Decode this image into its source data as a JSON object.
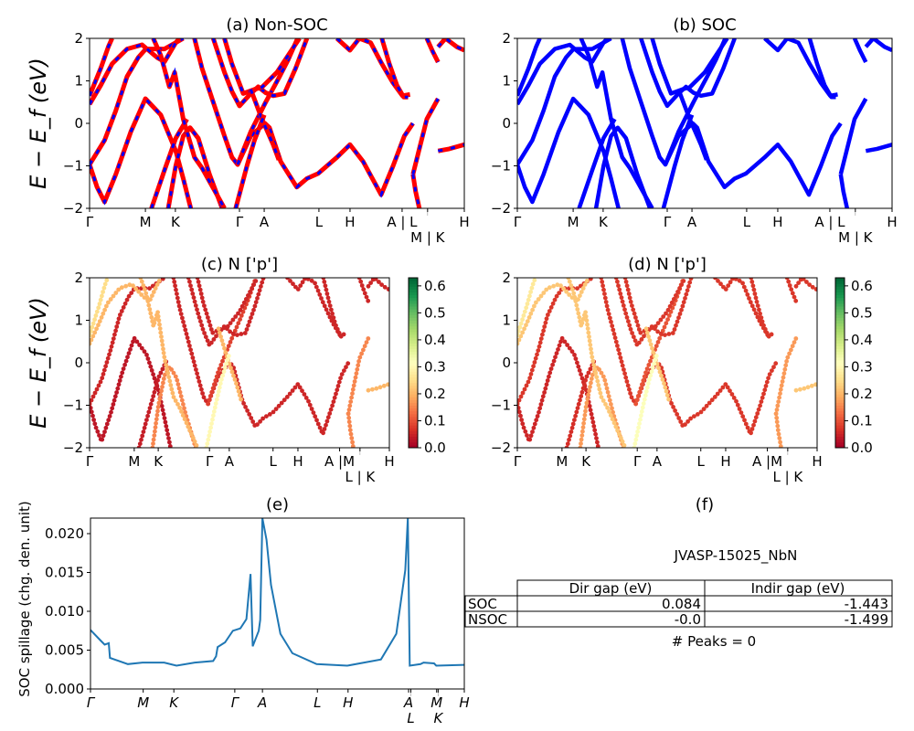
{
  "chart_data": [
    {
      "id": "a",
      "type": "line",
      "title": "(a) Non-SOC",
      "ylabel": "E − E_f (eV)",
      "ylim": [
        -2,
        2
      ],
      "yticks": [
        -2,
        -1,
        0,
        1,
        2
      ],
      "xticks": [
        "Γ",
        "M",
        "K",
        "Γ",
        "A",
        "L",
        "H",
        "A | L",
        "M | K",
        "H"
      ],
      "xtick_pos": [
        0,
        0.149,
        0.229,
        0.4,
        0.466,
        0.612,
        0.695,
        0.834,
        0.902,
        1.0
      ],
      "style": "red-blue-dashed"
    },
    {
      "id": "b",
      "type": "line",
      "title": "(b) SOC",
      "ylim": [
        -2,
        2
      ],
      "yticks": [
        -2,
        -1,
        0,
        1,
        2
      ],
      "xticks": [
        "Γ",
        "M",
        "K",
        "Γ",
        "A",
        "L",
        "H",
        "A | L",
        "M | K",
        "H"
      ],
      "xtick_pos": [
        0,
        0.149,
        0.229,
        0.4,
        0.466,
        0.612,
        0.695,
        0.834,
        0.902,
        1.0
      ],
      "style": "blue",
      "color": "#0000ff"
    },
    {
      "id": "c",
      "type": "scatter",
      "title": "(c)  N ['p']",
      "ylabel": "E − E_f (eV)",
      "ylim": [
        -2,
        2
      ],
      "yticks": [
        -2,
        -1,
        0,
        1,
        2
      ],
      "xticks": [
        "Γ",
        "M",
        "K",
        "Γ",
        "A",
        "L",
        "H",
        "A |M",
        "L | K",
        "H"
      ],
      "xtick_pos": [
        0,
        0.149,
        0.229,
        0.4,
        0.466,
        0.612,
        0.695,
        0.834,
        0.902,
        1.0
      ],
      "colorbar": {
        "colormap": "RdYlGn",
        "range": [
          0,
          0.63
        ],
        "ticks": [
          "0.0",
          "0.1",
          "0.2",
          "0.3",
          "0.4",
          "0.5",
          "0.6"
        ]
      }
    },
    {
      "id": "d",
      "type": "scatter",
      "title": "(d) N ['p']",
      "ylim": [
        -2,
        2
      ],
      "yticks": [
        -2,
        -1,
        0,
        1,
        2
      ],
      "xticks": [
        "Γ",
        "M",
        "K",
        "Γ",
        "A",
        "L",
        "H",
        "A |M",
        "L | K",
        "H"
      ],
      "xtick_pos": [
        0,
        0.149,
        0.229,
        0.4,
        0.466,
        0.612,
        0.695,
        0.834,
        0.902,
        1.0
      ],
      "colorbar": {
        "colormap": "RdYlGn",
        "range": [
          0,
          0.63
        ],
        "ticks": [
          "0.0",
          "0.1",
          "0.2",
          "0.3",
          "0.4",
          "0.5",
          "0.6"
        ]
      }
    },
    {
      "id": "e",
      "type": "line",
      "title": "(e)",
      "ylabel": "SOC spillage (chg. den. unit)",
      "ylim": [
        0,
        0.022
      ],
      "yticks": [
        "0.000",
        "0.005",
        "0.010",
        "0.015",
        "0.020"
      ],
      "xticks": [
        "Γ",
        "M",
        "K",
        "Γ",
        "A",
        "L",
        "H",
        "A",
        "L",
        "M",
        "K",
        "H"
      ],
      "xtick_pos": [
        0,
        0.141,
        0.223,
        0.386,
        0.46,
        0.607,
        0.689,
        0.851,
        0.857,
        0.926,
        0.93,
        1.0
      ],
      "color": "#1f77b4",
      "x": [
        0,
        0.026,
        0.038,
        0.049,
        0.052,
        0.1,
        0.139,
        0.197,
        0.23,
        0.279,
        0.328,
        0.336,
        0.34,
        0.36,
        0.381,
        0.401,
        0.417,
        0.428,
        0.434,
        0.45,
        0.454,
        0.46,
        0.471,
        0.483,
        0.508,
        0.54,
        0.605,
        0.687,
        0.777,
        0.818,
        0.842,
        0.849,
        0.854,
        0.883,
        0.891,
        0.919,
        0.925,
        1.0
      ],
      "y": [
        0.0076,
        0.0063,
        0.0057,
        0.0059,
        0.004,
        0.0032,
        0.0034,
        0.0034,
        0.003,
        0.0034,
        0.0036,
        0.0042,
        0.0054,
        0.006,
        0.0075,
        0.0078,
        0.009,
        0.0148,
        0.0055,
        0.0075,
        0.0089,
        0.022,
        0.0192,
        0.0134,
        0.0071,
        0.0046,
        0.0032,
        0.003,
        0.0038,
        0.0071,
        0.0153,
        0.022,
        0.003,
        0.0032,
        0.0034,
        0.0033,
        0.003,
        0.0031
      ]
    }
  ],
  "bands": [
    {
      "w": 0.03,
      "pts": [
        [
          0,
          -0.97
        ],
        [
          0.02,
          -1.5
        ],
        [
          0.04,
          -1.85
        ],
        [
          0.07,
          -1.2
        ],
        [
          0.11,
          -0.2
        ],
        [
          0.149,
          0.58
        ],
        [
          0.19,
          0.2
        ],
        [
          0.23,
          -0.65
        ],
        [
          0.25,
          -1.3
        ],
        [
          0.27,
          -2.0
        ]
      ]
    },
    {
      "w": 0.05,
      "pts": [
        [
          0,
          -0.97
        ],
        [
          0.04,
          -0.4
        ],
        [
          0.07,
          0.3
        ],
        [
          0.1,
          1.1
        ],
        [
          0.13,
          1.55
        ],
        [
          0.15,
          1.75
        ],
        [
          0.2,
          1.75
        ],
        [
          0.23,
          1.9
        ],
        [
          0.25,
          2.0
        ]
      ]
    },
    {
      "w": 0.2,
      "pts": [
        [
          0,
          0.45
        ],
        [
          0.03,
          0.9
        ],
        [
          0.06,
          1.4
        ],
        [
          0.1,
          1.75
        ],
        [
          0.14,
          1.85
        ],
        [
          0.18,
          1.55
        ],
        [
          0.2,
          1.45
        ],
        [
          0.23,
          1.9
        ],
        [
          0.24,
          2.0
        ]
      ]
    },
    {
      "w": 0.25,
      "pts": [
        [
          0,
          0.65
        ],
        [
          0.03,
          1.3
        ],
        [
          0.05,
          1.8
        ],
        [
          0.06,
          2.0
        ]
      ]
    },
    {
      "w": 0.15,
      "pts": [
        [
          0.21,
          -2.0
        ],
        [
          0.23,
          -1.0
        ],
        [
          0.25,
          -0.3
        ],
        [
          0.268,
          -0.1
        ],
        [
          0.29,
          -0.35
        ],
        [
          0.32,
          -1.2
        ],
        [
          0.354,
          -2.0
        ]
      ]
    },
    {
      "w": 0.04,
      "pts": [
        [
          0.165,
          -2.0
        ],
        [
          0.2,
          -1.1
        ],
        [
          0.23,
          -0.35
        ],
        [
          0.26,
          0.1
        ]
      ]
    },
    {
      "w": 0.2,
      "pts": [
        [
          0.17,
          2.0
        ],
        [
          0.19,
          1.6
        ],
        [
          0.213,
          0.86
        ],
        [
          0.227,
          1.2
        ],
        [
          0.25,
          0.1
        ],
        [
          0.28,
          -0.8
        ],
        [
          0.3,
          -1.05
        ],
        [
          0.36,
          -2.0
        ]
      ]
    },
    {
      "w": 0.05,
      "pts": [
        [
          0.28,
          2.0
        ],
        [
          0.3,
          1.3
        ],
        [
          0.33,
          0.5
        ],
        [
          0.36,
          -0.3
        ],
        [
          0.38,
          -0.8
        ],
        [
          0.395,
          -0.97
        ],
        [
          0.43,
          -0.3
        ],
        [
          0.468,
          0.0
        ],
        [
          0.48,
          -0.1
        ],
        [
          0.51,
          -0.9
        ],
        [
          0.553,
          -1.5
        ],
        [
          0.58,
          -1.3
        ],
        [
          0.61,
          -1.18
        ],
        [
          0.66,
          -0.8
        ],
        [
          0.695,
          -0.5
        ],
        [
          0.73,
          -0.9
        ],
        [
          0.778,
          -1.68
        ],
        [
          0.81,
          -1.0
        ],
        [
          0.84,
          -0.3
        ],
        [
          0.863,
          0.0
        ]
      ]
    },
    {
      "w": 0.08,
      "pts": [
        [
          0.395,
          -0.97
        ],
        [
          0.43,
          -0.2
        ],
        [
          0.47,
          0.5
        ],
        [
          0.505,
          1.07
        ],
        [
          0.53,
          1.5
        ],
        [
          0.555,
          2.0
        ]
      ]
    },
    {
      "w": 0.05,
      "pts": [
        [
          0.33,
          2.0
        ],
        [
          0.36,
          1.2
        ],
        [
          0.38,
          0.75
        ],
        [
          0.4,
          0.41
        ],
        [
          0.43,
          0.7
        ],
        [
          0.45,
          0.86
        ],
        [
          0.47,
          0.72
        ],
        [
          0.49,
          0.65
        ],
        [
          0.52,
          0.7
        ],
        [
          0.55,
          1.3
        ],
        [
          0.58,
          2.0
        ]
      ]
    },
    {
      "w": 0.05,
      "pts": [
        [
          0.36,
          2.0
        ],
        [
          0.38,
          1.4
        ],
        [
          0.41,
          0.7
        ],
        [
          0.44,
          0.8
        ],
        [
          0.46,
          0.85
        ],
        [
          0.5,
          1.2
        ],
        [
          0.53,
          1.6
        ],
        [
          0.56,
          2.0
        ]
      ]
    },
    {
      "w": 0.2,
      "pts": [
        [
          0.43,
          0.8
        ],
        [
          0.46,
          0.1
        ],
        [
          0.49,
          -0.5
        ],
        [
          0.505,
          -0.86
        ]
      ]
    },
    {
      "w": 0.3,
      "pts": [
        [
          0.39,
          -2.0
        ],
        [
          0.42,
          -1.0
        ],
        [
          0.44,
          -0.4
        ],
        [
          0.466,
          0.2
        ]
      ]
    },
    {
      "w": 0.05,
      "pts": [
        [
          0.66,
          2.0
        ],
        [
          0.695,
          1.72
        ],
        [
          0.72,
          2.0
        ],
        [
          0.75,
          1.9
        ],
        [
          0.78,
          1.4
        ],
        [
          0.81,
          0.95
        ],
        [
          0.835,
          0.65
        ],
        [
          0.855,
          0.68
        ]
      ]
    },
    {
      "w": 0.05,
      "pts": [
        [
          0.78,
          2.0
        ],
        [
          0.8,
          1.4
        ],
        [
          0.82,
          0.9
        ],
        [
          0.838,
          0.62
        ],
        [
          0.85,
          0.62
        ]
      ]
    },
    {
      "w": 0.15,
      "pts": [
        [
          0.863,
          -1.2
        ],
        [
          0.88,
          -0.6
        ],
        [
          0.9,
          0.1
        ],
        [
          0.93,
          0.58
        ]
      ]
    },
    {
      "w": 0.15,
      "pts": [
        [
          0.863,
          -1.2
        ],
        [
          0.87,
          -1.6
        ],
        [
          0.88,
          -2.0
        ]
      ]
    },
    {
      "w": 0.2,
      "pts": [
        [
          0.93,
          -0.65
        ],
        [
          0.96,
          -0.6
        ],
        [
          1.0,
          -0.5
        ]
      ]
    },
    {
      "w": 0.05,
      "pts": [
        [
          0.9,
          2.0
        ],
        [
          0.915,
          1.7
        ],
        [
          0.93,
          1.44
        ]
      ]
    },
    {
      "w": 0.05,
      "pts": [
        [
          0.93,
          1.8
        ],
        [
          0.95,
          2.0
        ],
        [
          0.98,
          1.8
        ],
        [
          1.0,
          1.72
        ]
      ]
    }
  ],
  "panel_f": {
    "title": "(f)",
    "material": "JVASP-15025_NbN",
    "table": {
      "columns": [
        "Dir gap (eV)",
        "Indir gap (eV)"
      ],
      "rows": [
        {
          "label": "SOC",
          "values": [
            "0.084",
            "-1.443"
          ]
        },
        {
          "label": "NSOC",
          "values": [
            "-0.0",
            "-1.499"
          ]
        }
      ]
    },
    "peaks": "# Peaks = 0"
  }
}
